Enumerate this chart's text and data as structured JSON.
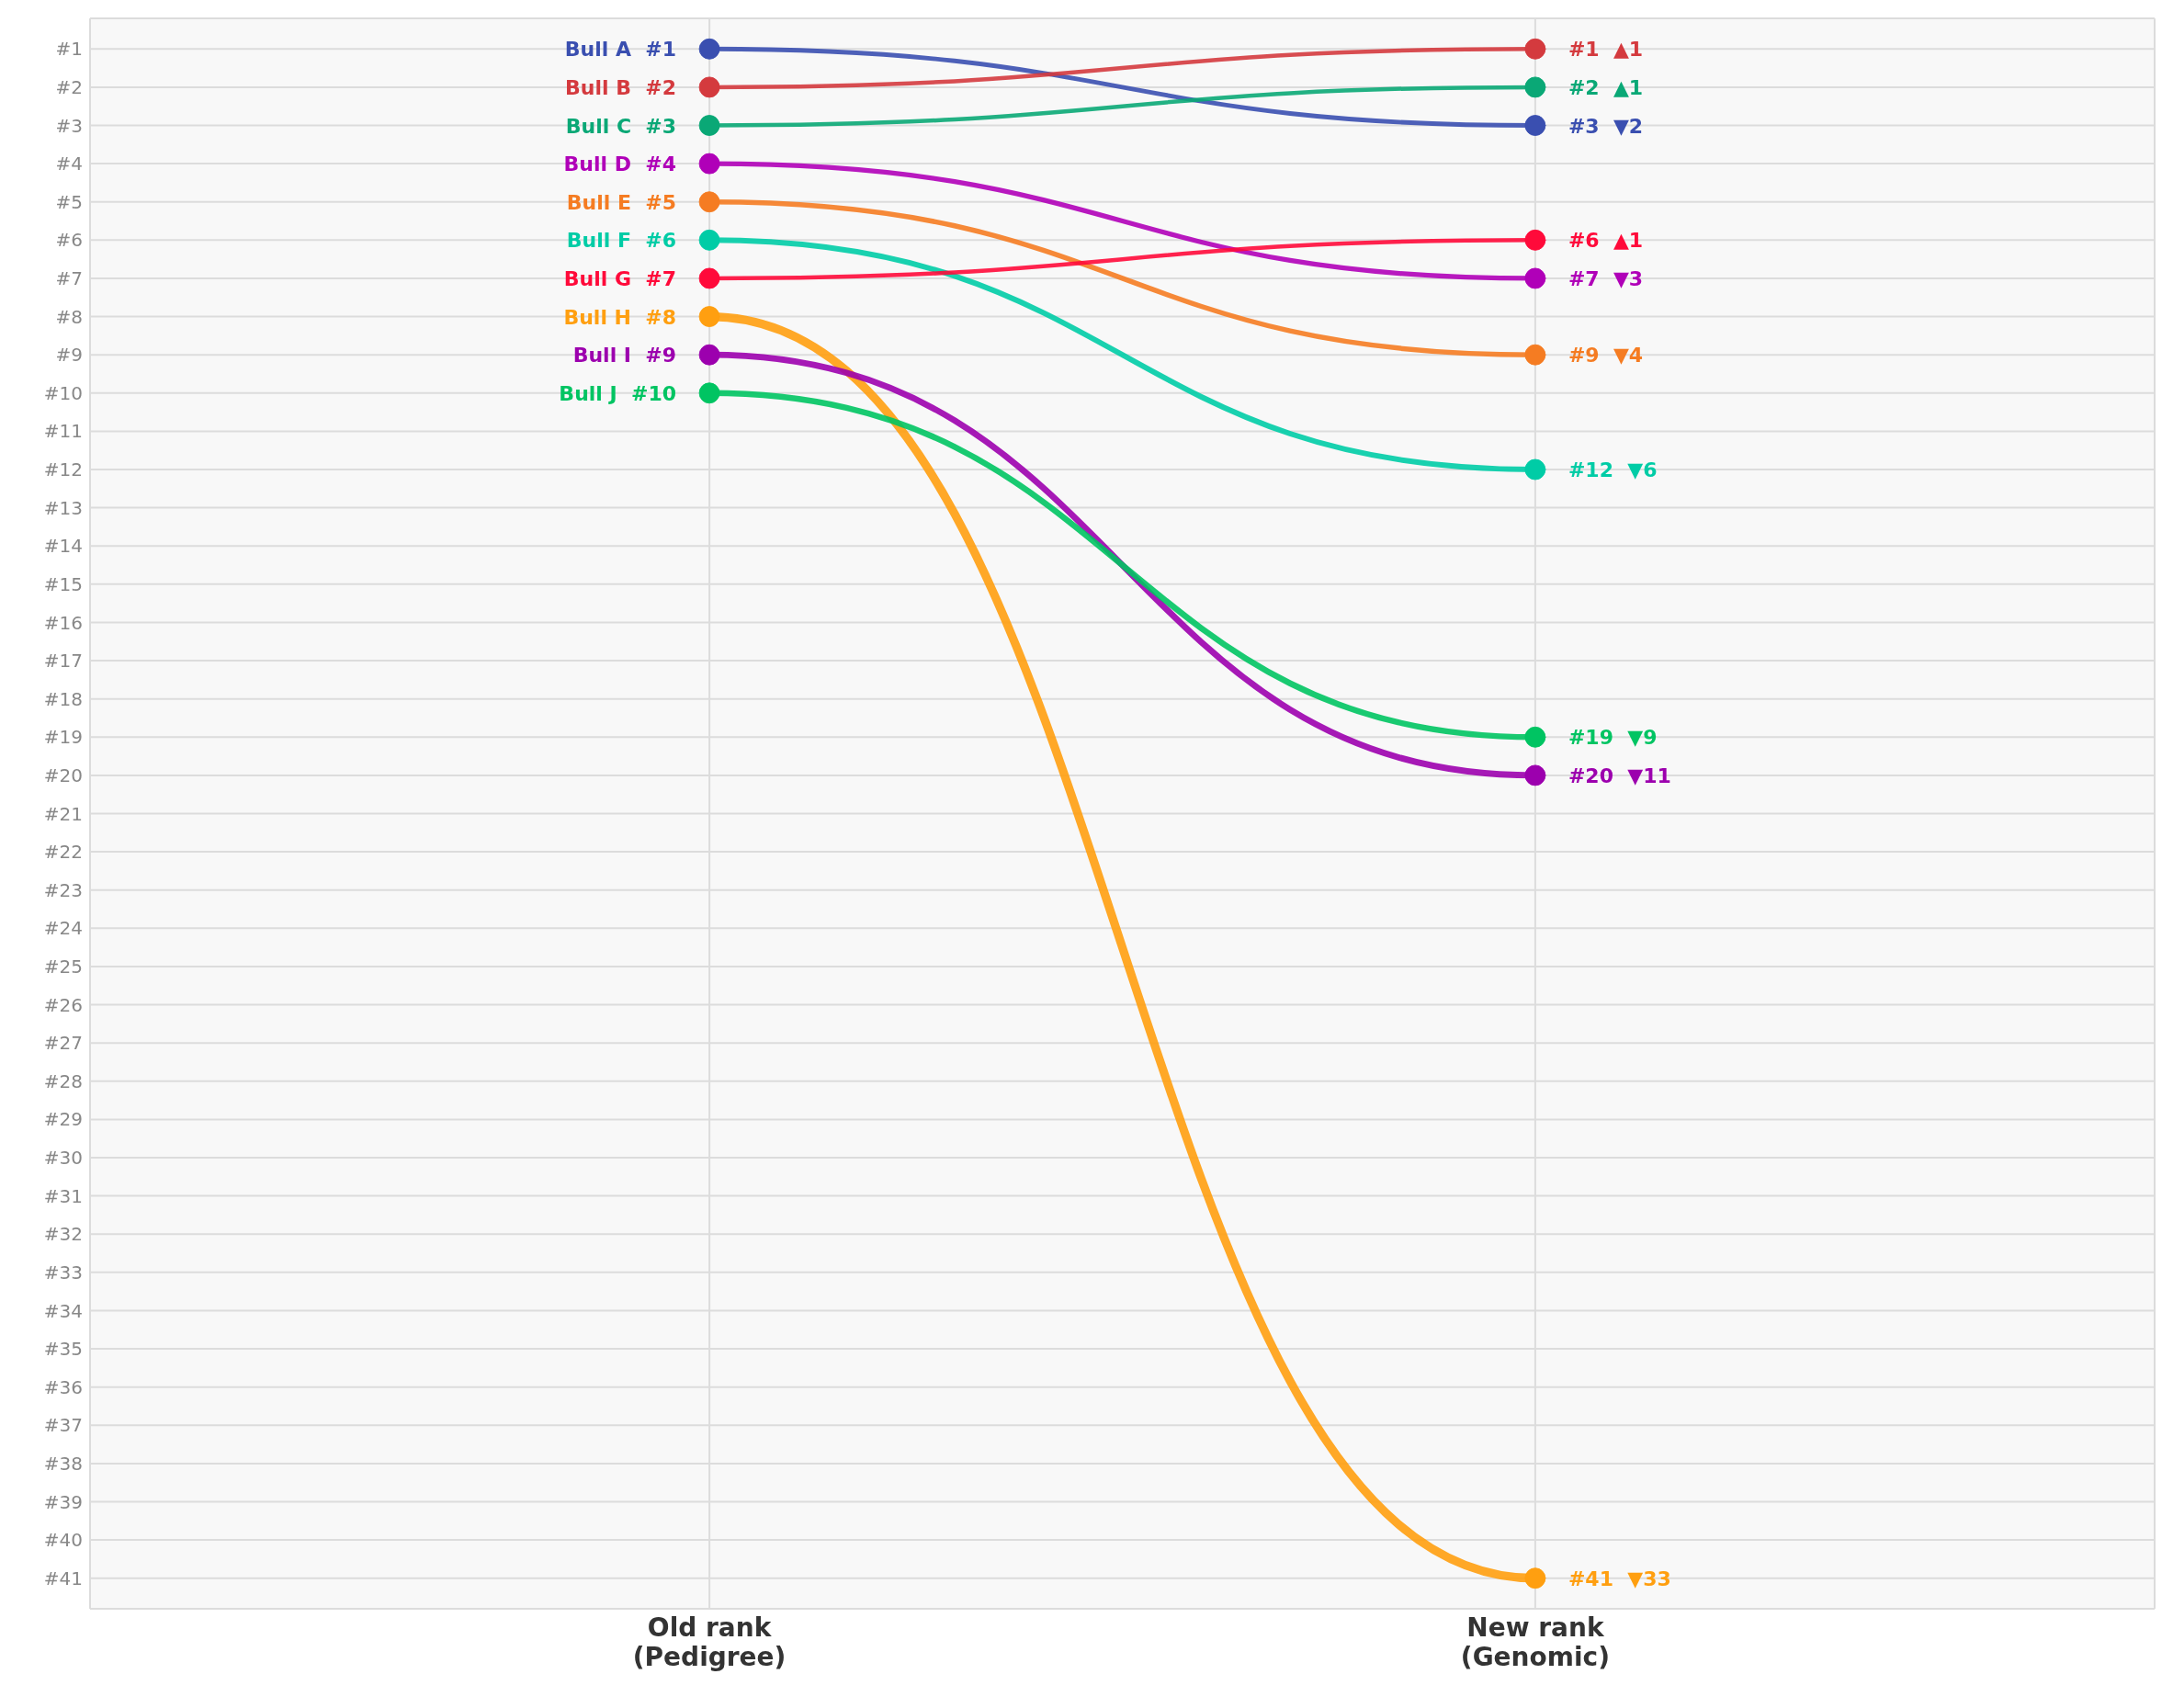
{
  "chart_data": {
    "type": "line",
    "categories": [
      "Old rank\n(Pedigree)",
      "New rank\n(Genomic)"
    ],
    "ylim": [
      41.8,
      0.2
    ],
    "yticks": [
      {
        "value": 1,
        "label": "#1"
      },
      {
        "value": 2,
        "label": "#2"
      },
      {
        "value": 3,
        "label": "#3"
      },
      {
        "value": 4,
        "label": "#4"
      },
      {
        "value": 5,
        "label": "#5"
      },
      {
        "value": 6,
        "label": "#6"
      },
      {
        "value": 7,
        "label": "#7"
      },
      {
        "value": 8,
        "label": "#8"
      },
      {
        "value": 9,
        "label": "#9"
      },
      {
        "value": 10,
        "label": "#10"
      },
      {
        "value": 11,
        "label": "#11"
      },
      {
        "value": 12,
        "label": "#12"
      },
      {
        "value": 13,
        "label": "#13"
      },
      {
        "value": 14,
        "label": "#14"
      },
      {
        "value": 15,
        "label": "#15"
      },
      {
        "value": 16,
        "label": "#16"
      },
      {
        "value": 17,
        "label": "#17"
      },
      {
        "value": 18,
        "label": "#18"
      },
      {
        "value": 19,
        "label": "#19"
      },
      {
        "value": 20,
        "label": "#20"
      },
      {
        "value": 21,
        "label": "#21"
      },
      {
        "value": 22,
        "label": "#22"
      },
      {
        "value": 23,
        "label": "#23"
      },
      {
        "value": 24,
        "label": "#24"
      },
      {
        "value": 25,
        "label": "#25"
      },
      {
        "value": 26,
        "label": "#26"
      },
      {
        "value": 27,
        "label": "#27"
      },
      {
        "value": 28,
        "label": "#28"
      },
      {
        "value": 29,
        "label": "#29"
      },
      {
        "value": 30,
        "label": "#30"
      },
      {
        "value": 31,
        "label": "#31"
      },
      {
        "value": 32,
        "label": "#32"
      },
      {
        "value": 33,
        "label": "#33"
      },
      {
        "value": 34,
        "label": "#34"
      },
      {
        "value": 35,
        "label": "#35"
      },
      {
        "value": 36,
        "label": "#36"
      },
      {
        "value": 37,
        "label": "#37"
      },
      {
        "value": 38,
        "label": "#38"
      },
      {
        "value": 39,
        "label": "#39"
      },
      {
        "value": 40,
        "label": "#40"
      },
      {
        "value": 41,
        "label": "#41"
      }
    ],
    "grid": true,
    "marker": "circle",
    "line_style": "solid",
    "series": [
      {
        "name": "Bull A",
        "color": "#3a4fb0",
        "values": [
          1,
          3
        ],
        "value_labels": [
          "#1",
          "#3  ▼2"
        ]
      },
      {
        "name": "Bull B",
        "color": "#d43a3e",
        "values": [
          2,
          1
        ],
        "value_labels": [
          "#2",
          "#1  ▲1"
        ]
      },
      {
        "name": "Bull C",
        "color": "#0aa876",
        "values": [
          3,
          2
        ],
        "value_labels": [
          "#3",
          "#2  ▲1"
        ]
      },
      {
        "name": "Bull D",
        "color": "#b000b8",
        "values": [
          4,
          7
        ],
        "value_labels": [
          "#4",
          "#7  ▼3"
        ]
      },
      {
        "name": "Bull E",
        "color": "#f57c22",
        "values": [
          5,
          9
        ],
        "value_labels": [
          "#5",
          "#9  ▼4"
        ]
      },
      {
        "name": "Bull F",
        "color": "#00cca6",
        "values": [
          6,
          12
        ],
        "value_labels": [
          "#6",
          "#12  ▼6"
        ]
      },
      {
        "name": "Bull G",
        "color": "#ff0a3a",
        "values": [
          7,
          6
        ],
        "value_labels": [
          "#7",
          "#6  ▲1"
        ]
      },
      {
        "name": "Bull H",
        "color": "#ff9f10",
        "values": [
          8,
          41
        ],
        "value_labels": [
          "#8",
          "#41  ▼33"
        ]
      },
      {
        "name": "Bull I",
        "color": "#9c00ae",
        "values": [
          9,
          20
        ],
        "value_labels": [
          "#9",
          "#20  ▼11"
        ]
      },
      {
        "name": "Bull J",
        "color": "#00c462",
        "values": [
          10,
          19
        ],
        "value_labels": [
          "#10",
          "#19  ▼9"
        ]
      }
    ]
  }
}
